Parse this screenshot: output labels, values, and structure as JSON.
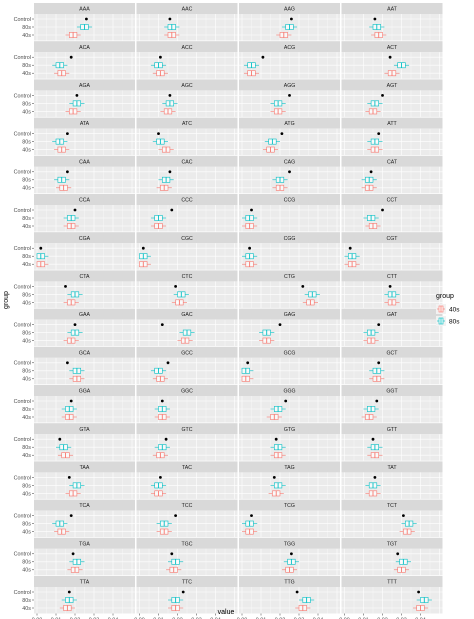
{
  "chart_data": {
    "type": "boxplot",
    "facet_rows": 16,
    "facet_cols": 4,
    "xlabel": "value",
    "ylabel": "group",
    "xlim": [
      0,
      0.05
    ],
    "x_ticks": [
      "0.00",
      "0.01",
      "0.02",
      "0.03",
      "0.04"
    ],
    "x_tick_values": [
      0,
      0.01,
      0.02,
      0.03,
      0.04
    ],
    "y_categories": [
      "Control",
      "80s",
      "40s"
    ],
    "legend": {
      "title": "group",
      "position": "right",
      "entries": [
        {
          "label": "40s",
          "color": "#F8766D"
        },
        {
          "label": "80s",
          "color": "#00BFC4"
        }
      ]
    },
    "colors": {
      "40s": "#F8766D",
      "80s": "#00BFC4",
      "Control": "#000000",
      "panel_bg": "#EBEBEB",
      "strip_bg": "#D9D9D9",
      "grid": "#FFFFFF"
    },
    "facets": [
      {
        "label": "AAA",
        "control": 0.026,
        "s80": 0.025,
        "s40": 0.019
      },
      {
        "label": "AAC",
        "control": 0.016,
        "s80": 0.017,
        "s40": 0.017
      },
      {
        "label": "AAG",
        "control": 0.026,
        "s80": 0.025,
        "s40": 0.022
      },
      {
        "label": "AAT",
        "control": 0.016,
        "s80": 0.017,
        "s40": 0.018
      },
      {
        "label": "ACA",
        "control": 0.018,
        "s80": 0.012,
        "s40": 0.013
      },
      {
        "label": "ACC",
        "control": 0.011,
        "s80": 0.01,
        "s40": 0.011
      },
      {
        "label": "ACG",
        "control": 0.011,
        "s80": 0.005,
        "s40": 0.005
      },
      {
        "label": "ACT",
        "control": 0.024,
        "s80": 0.03,
        "s40": 0.025
      },
      {
        "label": "AGA",
        "control": 0.021,
        "s80": 0.021,
        "s40": 0.019
      },
      {
        "label": "AGC",
        "control": 0.016,
        "s80": 0.016,
        "s40": 0.015
      },
      {
        "label": "AGG",
        "control": 0.025,
        "s80": 0.019,
        "s40": 0.019
      },
      {
        "label": "AGT",
        "control": 0.02,
        "s80": 0.016,
        "s40": 0.015
      },
      {
        "label": "ATA",
        "control": 0.016,
        "s80": 0.012,
        "s40": 0.013
      },
      {
        "label": "ATC",
        "control": 0.01,
        "s80": 0.011,
        "s40": 0.014
      },
      {
        "label": "ATG",
        "control": 0.021,
        "s80": 0.016,
        "s40": 0.015
      },
      {
        "label": "ATT",
        "control": 0.018,
        "s80": 0.016,
        "s40": 0.016
      },
      {
        "label": "CAA",
        "control": 0.016,
        "s80": 0.013,
        "s40": 0.014
      },
      {
        "label": "CAC",
        "control": 0.016,
        "s80": 0.014,
        "s40": 0.013
      },
      {
        "label": "CAG",
        "control": 0.025,
        "s80": 0.02,
        "s40": 0.02
      },
      {
        "label": "CAT",
        "control": 0.014,
        "s80": 0.013,
        "s40": 0.013
      },
      {
        "label": "CCA",
        "control": 0.02,
        "s80": 0.018,
        "s40": 0.018
      },
      {
        "label": "CCC",
        "control": 0.017,
        "s80": 0.01,
        "s40": 0.01
      },
      {
        "label": "CCG",
        "control": 0.005,
        "s80": 0.004,
        "s40": 0.004
      },
      {
        "label": "CCT",
        "control": 0.02,
        "s80": 0.014,
        "s40": 0.015
      },
      {
        "label": "CGA",
        "control": 0.002,
        "s80": 0.002,
        "s40": 0.002
      },
      {
        "label": "CGC",
        "control": 0.002,
        "s80": 0.002,
        "s40": 0.002
      },
      {
        "label": "CGG",
        "control": 0.004,
        "s80": 0.004,
        "s40": 0.004
      },
      {
        "label": "CGT",
        "control": 0.003,
        "s80": 0.004,
        "s40": 0.004
      },
      {
        "label": "CTA",
        "control": 0.015,
        "s80": 0.02,
        "s40": 0.018
      },
      {
        "label": "CTC",
        "control": 0.019,
        "s80": 0.022,
        "s40": 0.021
      },
      {
        "label": "CTG",
        "control": 0.032,
        "s80": 0.037,
        "s40": 0.036
      },
      {
        "label": "CTT",
        "control": 0.024,
        "s80": 0.025,
        "s40": 0.025
      },
      {
        "label": "GAA",
        "control": 0.02,
        "s80": 0.02,
        "s40": 0.018
      },
      {
        "label": "GAC",
        "control": 0.012,
        "s80": 0.025,
        "s40": 0.024
      },
      {
        "label": "GAG",
        "control": 0.02,
        "s80": 0.013,
        "s40": 0.013
      },
      {
        "label": "GAT",
        "control": 0.018,
        "s80": 0.014,
        "s40": 0.014
      },
      {
        "label": "GCA",
        "control": 0.016,
        "s80": 0.021,
        "s40": 0.021
      },
      {
        "label": "GCC",
        "control": 0.015,
        "s80": 0.01,
        "s40": 0.011
      },
      {
        "label": "GCG",
        "control": 0.003,
        "s80": 0.002,
        "s40": 0.002
      },
      {
        "label": "GCT",
        "control": 0.018,
        "s80": 0.017,
        "s40": 0.017
      },
      {
        "label": "GGA",
        "control": 0.018,
        "s80": 0.017,
        "s40": 0.017
      },
      {
        "label": "GGC",
        "control": 0.012,
        "s80": 0.012,
        "s40": 0.012
      },
      {
        "label": "GGG",
        "control": 0.023,
        "s80": 0.019,
        "s40": 0.017
      },
      {
        "label": "GGT",
        "control": 0.017,
        "s80": 0.014,
        "s40": 0.013
      },
      {
        "label": "GTA",
        "control": 0.012,
        "s80": 0.014,
        "s40": 0.015
      },
      {
        "label": "GTC",
        "control": 0.014,
        "s80": 0.012,
        "s40": 0.011
      },
      {
        "label": "GTG",
        "control": 0.018,
        "s80": 0.019,
        "s40": 0.019
      },
      {
        "label": "GTT",
        "control": 0.015,
        "s80": 0.016,
        "s40": 0.016
      },
      {
        "label": "TAA",
        "control": 0.017,
        "s80": 0.021,
        "s40": 0.019
      },
      {
        "label": "TAC",
        "control": 0.011,
        "s80": 0.01,
        "s40": 0.01
      },
      {
        "label": "TAG",
        "control": 0.017,
        "s80": 0.019,
        "s40": 0.018
      },
      {
        "label": "TAT",
        "control": 0.016,
        "s80": 0.015,
        "s40": 0.015
      },
      {
        "label": "TCA",
        "control": 0.018,
        "s80": 0.012,
        "s40": 0.013
      },
      {
        "label": "TCC",
        "control": 0.019,
        "s80": 0.013,
        "s40": 0.013
      },
      {
        "label": "TCG",
        "control": 0.005,
        "s80": 0.004,
        "s40": 0.004
      },
      {
        "label": "TCT",
        "control": 0.031,
        "s80": 0.034,
        "s40": 0.033
      },
      {
        "label": "TGA",
        "control": 0.019,
        "s80": 0.021,
        "s40": 0.02
      },
      {
        "label": "TGC",
        "control": 0.017,
        "s80": 0.019,
        "s40": 0.018
      },
      {
        "label": "TGG",
        "control": 0.026,
        "s80": 0.026,
        "s40": 0.025
      },
      {
        "label": "TGT",
        "control": 0.028,
        "s80": 0.031,
        "s40": 0.03
      },
      {
        "label": "TTA",
        "control": 0.017,
        "s80": 0.017,
        "s40": 0.016
      },
      {
        "label": "TTC",
        "control": 0.023,
        "s80": 0.019,
        "s40": 0.019
      },
      {
        "label": "TTG",
        "control": 0.029,
        "s80": 0.034,
        "s40": 0.032
      },
      {
        "label": "TTT",
        "control": 0.039,
        "s80": 0.042,
        "s40": 0.04
      }
    ]
  }
}
